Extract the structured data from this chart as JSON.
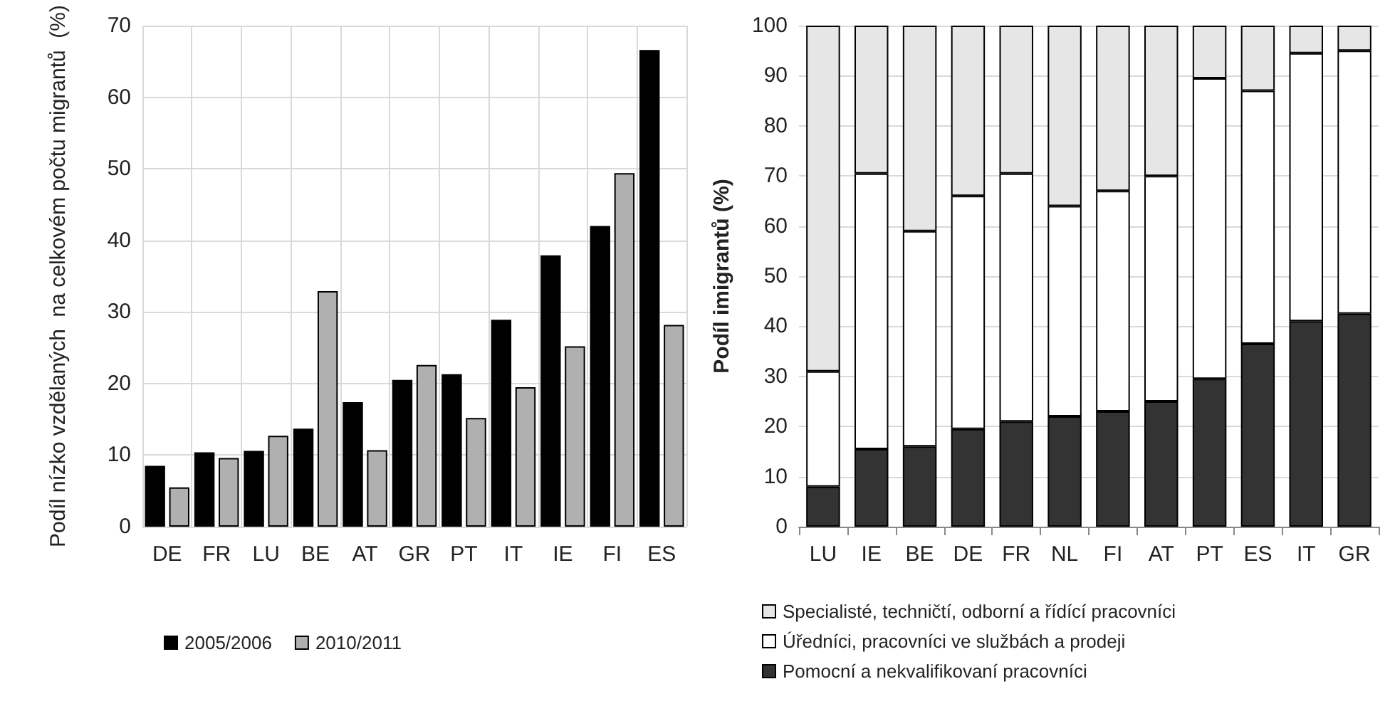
{
  "chart_data": [
    {
      "type": "bar",
      "ylabel": "Podíl nízko vzdělaných  na celkovém počtu migrantů  (%)",
      "categories": [
        "DE",
        "FR",
        "LU",
        "BE",
        "AT",
        "GR",
        "PT",
        "IT",
        "IE",
        "FI",
        "ES"
      ],
      "series": [
        {
          "name": "2005/2006",
          "color": "#000000",
          "values": [
            8.5,
            10.4,
            10.6,
            13.7,
            17.4,
            20.5,
            21.3,
            28.9,
            37.9,
            42,
            66.6
          ]
        },
        {
          "name": "2010/2011",
          "color": "#b0b0b0",
          "values": [
            5.5,
            9.6,
            12.7,
            32.9,
            10.7,
            22.6,
            15.2,
            19.5,
            25.2,
            49.4,
            28.2
          ]
        }
      ],
      "ylim": [
        0,
        70
      ],
      "yticks": [
        0,
        10,
        20,
        30,
        40,
        50,
        60,
        70
      ],
      "grid": true,
      "legend": "bottom"
    },
    {
      "type": "bar",
      "stacked": true,
      "ylabel": "Podíl imigrantů (%)",
      "categories": [
        "LU",
        "IE",
        "BE",
        "DE",
        "FR",
        "NL",
        "FI",
        "AT",
        "PT",
        "ES",
        "IT",
        "GR"
      ],
      "series": [
        {
          "name": "Pomocní a nekvalifikovaní pracovníci",
          "color": "#333333",
          "values": [
            8,
            15.5,
            16,
            19.5,
            21,
            22,
            23,
            25,
            29.5,
            36.5,
            41,
            42.5
          ]
        },
        {
          "name": "Úředníci, pracovníci ve službách a prodeji",
          "color": "#ffffff",
          "values": [
            23,
            55,
            43,
            46.5,
            49.5,
            42,
            44,
            45,
            60,
            50.5,
            53.5,
            52.5
          ]
        },
        {
          "name": "Specialisté, techničtí, odborní a řídící pracovníci",
          "color": "#e6e6e6",
          "values": [
            69,
            29.5,
            41,
            34,
            29.5,
            36,
            33,
            30,
            10.5,
            13,
            5.5,
            5
          ]
        }
      ],
      "ylim": [
        0,
        100
      ],
      "yticks": [
        0,
        10,
        20,
        30,
        40,
        50,
        60,
        70,
        80,
        90,
        100
      ],
      "grid": "y",
      "legend": "bottom"
    }
  ]
}
